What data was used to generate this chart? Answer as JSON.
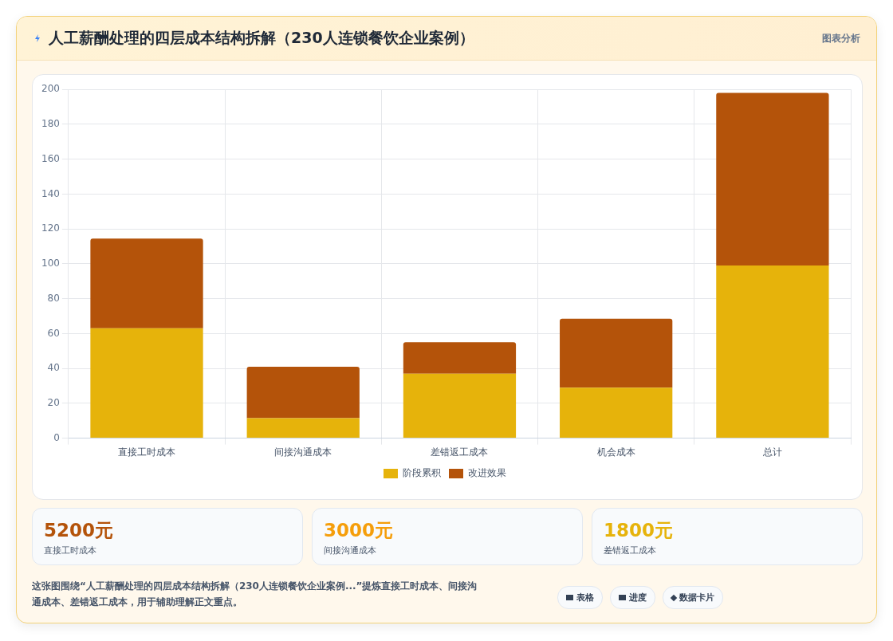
{
  "chart_data": [
    {
      "type": "bar",
      "title": "人工薪酬处理的四层成本结构拆解（230人连锁餐饮企业案例）",
      "annotations": [
        "图表分析"
      ],
      "categories": [
        "直接工时成本",
        "间接沟通成本",
        "差错返工成本",
        "机会成本",
        "总计"
      ],
      "stacked": true,
      "series": [
        {
          "name": "阶段累积",
          "color": "#e6b30b",
          "values": [
            63,
            11.5,
            37,
            29,
            99
          ]
        },
        {
          "name": "改进效果",
          "color": "#b4530a",
          "values": [
            51.5,
            29.5,
            18,
            39.5,
            99
          ]
        }
      ],
      "ylim": [
        0,
        200
      ],
      "yticks": [
        0,
        20,
        40,
        60,
        80,
        100,
        120,
        140,
        160,
        180,
        200
      ],
      "grid": true,
      "legend": "bottom"
    },
    {
      "type": "other",
      "annotations": [
        "5200元",
        "直接工时成本",
        "3000元",
        "间接沟通成本",
        "1800元",
        "差错返工成本",
        "这张图围绕“人工薪酬处理的四层成本结构拆解（230人连锁餐饮企业案例...”提炼直接工时成本、间接沟通成本、差错返工成本，用于辅助理解正文重点。",
        "表格",
        "进度",
        "数据卡片"
      ]
    }
  ]
}
